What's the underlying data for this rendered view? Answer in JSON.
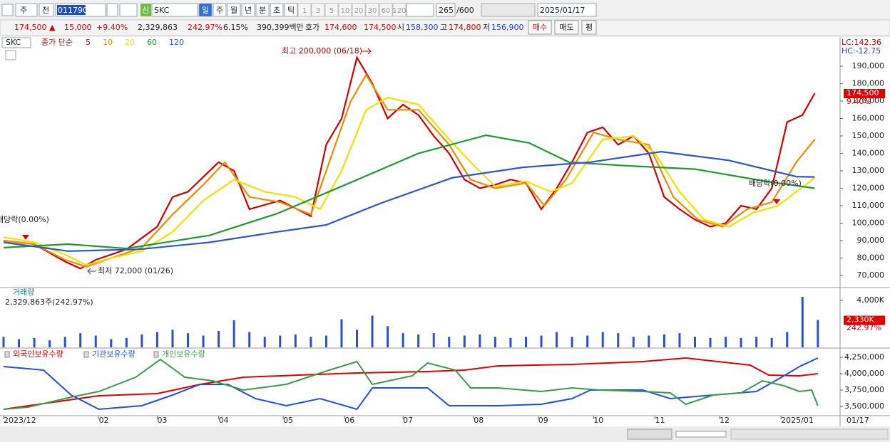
{
  "toolbar": {
    "market": "주",
    "prev": "전",
    "code": "011790",
    "new": "신",
    "name": "SKC",
    "periods": [
      "일",
      "주",
      "월",
      "년",
      "분",
      "초",
      "틱"
    ],
    "intervals": [
      "1",
      "3",
      "5",
      "10",
      "20",
      "30",
      "60",
      "120"
    ],
    "count": "265",
    "max": "/600",
    "date": "2025/01/17"
  },
  "quote_bar": {
    "items": [
      "174,500 ▲",
      "15,000",
      "+9.40%",
      "2,329,863",
      "242.97%",
      "6.15%",
      "390,399백만",
      "호가",
      "174,600",
      "174,500",
      "시",
      "158,300",
      "고",
      "174,800",
      "저",
      "156,900"
    ],
    "buttons": [
      "매수",
      "매도",
      "평"
    ]
  },
  "chart_data": [
    {
      "type": "line",
      "symbol": "SKC",
      "legend_prefix": "종가 단순",
      "xlim": [
        0,
        272
      ],
      "ylim": [
        63500,
        205500
      ],
      "yticks": [
        {
          "value": 190000,
          "label": "190,000"
        },
        {
          "value": 180000,
          "label": "180,000"
        },
        {
          "value": 170000,
          "label": "170,000"
        },
        {
          "value": 160000,
          "label": "160,000"
        },
        {
          "value": 150000,
          "label": "150,000"
        },
        {
          "value": 140000,
          "label": "140,000"
        },
        {
          "value": 130000,
          "label": "130,000"
        },
        {
          "value": 120000,
          "label": "120,000"
        },
        {
          "value": 110000,
          "label": "110,000"
        },
        {
          "value": 100000,
          "label": "100,000"
        },
        {
          "value": 90000,
          "label": "90,000"
        },
        {
          "value": 80000,
          "label": "80,000"
        },
        {
          "value": 70000,
          "label": "70,000"
        }
      ],
      "lc_label": "LC:142.36",
      "hc_label": "HC:-12.75",
      "last_value": {
        "value": 174500,
        "label": "174,500"
      },
      "change_label": "9.40%",
      "annotations": [
        "최고 200,000 (06/18)",
        "최저 72,000 (01/26)",
        "배당락(0.00%)",
        "배당락(0.00%)"
      ],
      "series": [
        {
          "name": "5",
          "color": "#d40000",
          "x": [
            0,
            10,
            20,
            25,
            30,
            40,
            50,
            55,
            60,
            70,
            75,
            80,
            90,
            100,
            105,
            110,
            115,
            120,
            125,
            130,
            135,
            140,
            145,
            150,
            155,
            160,
            165,
            170,
            175,
            180,
            185,
            190,
            195,
            200,
            205,
            210,
            215,
            220,
            225,
            230,
            235,
            240,
            245,
            250,
            255,
            260,
            264
          ],
          "values": [
            90000,
            88000,
            78000,
            74000,
            79000,
            85000,
            98000,
            115000,
            118000,
            135000,
            130000,
            108000,
            113000,
            104000,
            145000,
            160000,
            195000,
            180000,
            160000,
            168000,
            162000,
            150000,
            140000,
            125000,
            120000,
            122000,
            125000,
            123000,
            108000,
            120000,
            135000,
            152000,
            155000,
            145000,
            150000,
            140000,
            115000,
            108000,
            102000,
            98000,
            100000,
            110000,
            108000,
            120000,
            158000,
            162000,
            174500
          ]
        },
        {
          "name": "10",
          "color": "#f08c00",
          "x": [
            0,
            10,
            20,
            27,
            35,
            45,
            55,
            65,
            72,
            80,
            90,
            100,
            107,
            113,
            118,
            125,
            135,
            145,
            152,
            160,
            170,
            176,
            183,
            192,
            200,
            210,
            218,
            226,
            234,
            242,
            250,
            258,
            264
          ],
          "values": [
            90000,
            88000,
            79000,
            75000,
            80000,
            86000,
            105000,
            122000,
            135000,
            115000,
            112000,
            105000,
            140000,
            170000,
            185000,
            165000,
            165000,
            145000,
            125000,
            120000,
            123000,
            110000,
            125000,
            152000,
            148000,
            145000,
            115000,
            102000,
            98000,
            108000,
            112000,
            135000,
            148000
          ]
        },
        {
          "name": "20",
          "color": "#f2e200",
          "x": [
            0,
            10,
            20,
            27,
            35,
            45,
            55,
            65,
            75,
            85,
            95,
            103,
            110,
            118,
            125,
            135,
            145,
            152,
            160,
            170,
            178,
            185,
            195,
            205,
            212,
            220,
            228,
            236,
            244,
            252,
            258,
            264
          ],
          "values": [
            92000,
            89000,
            82000,
            76000,
            80000,
            84000,
            95000,
            113000,
            125000,
            118000,
            115000,
            108000,
            130000,
            165000,
            172000,
            168000,
            148000,
            135000,
            121000,
            124000,
            118000,
            123000,
            148000,
            150000,
            140000,
            118000,
            102000,
            98000,
            106000,
            110000,
            118000,
            126000
          ]
        },
        {
          "name": "60",
          "color": "#1f9a2f",
          "x": [
            0,
            21,
            40,
            67,
            89,
            112,
            135,
            157,
            171,
            184,
            202,
            225,
            248,
            264
          ],
          "values": [
            86000,
            88000,
            85500,
            93000,
            105500,
            122600,
            140000,
            150400,
            146000,
            135000,
            133000,
            131000,
            124000,
            120000
          ]
        },
        {
          "name": "120",
          "color": "#2f55d4",
          "x": [
            0,
            21,
            44,
            67,
            89,
            105,
            123,
            146,
            169,
            191,
            214,
            236,
            258,
            264
          ],
          "values": [
            89000,
            84000,
            85000,
            89000,
            95000,
            99000,
            111600,
            126000,
            132000,
            135000,
            141000,
            136000,
            126700,
            126500
          ]
        }
      ]
    },
    {
      "type": "bar",
      "title": "거래량",
      "subtitle": "2,329,863주(242.97%)",
      "color": "#2b4fd0",
      "xlim": [
        0,
        272
      ],
      "ylim": [
        0,
        5030000
      ],
      "yticks": [
        {
          "value": 4000000,
          "label": "4,000K"
        }
      ],
      "last_value": {
        "value": 2330000,
        "label": "2,330K"
      },
      "ratio_label": "242.97%",
      "x": [
        0,
        5,
        10,
        15,
        20,
        25,
        30,
        35,
        40,
        45,
        50,
        55,
        60,
        65,
        70,
        75,
        80,
        85,
        90,
        95,
        100,
        105,
        110,
        115,
        120,
        125,
        130,
        135,
        140,
        145,
        150,
        155,
        160,
        165,
        170,
        175,
        180,
        185,
        190,
        195,
        200,
        205,
        210,
        215,
        220,
        225,
        230,
        235,
        240,
        245,
        250,
        255,
        260,
        265
      ],
      "values": [
        900000,
        700000,
        800000,
        600000,
        900000,
        1200000,
        1000000,
        700000,
        800000,
        1100000,
        1300000,
        1500000,
        1200000,
        1000000,
        1400000,
        2300000,
        1300000,
        900000,
        1000000,
        1100000,
        900000,
        1000000,
        2400000,
        1500000,
        2700000,
        1800000,
        1200000,
        1100000,
        1200000,
        900000,
        1000000,
        1100000,
        900000,
        800000,
        900000,
        1000000,
        1300000,
        900000,
        1000000,
        1300000,
        1200000,
        900000,
        1000000,
        1100000,
        1200000,
        900000,
        800000,
        900000,
        800000,
        900000,
        800000,
        1300000,
        4300000,
        2330000
      ]
    },
    {
      "type": "line",
      "xlim": [
        0,
        272
      ],
      "ylim": [
        3369600,
        4358700
      ],
      "yticks": [
        {
          "value": 4250000,
          "label": "4,250,000"
        },
        {
          "value": 4000000,
          "label": "4,000,000"
        },
        {
          "value": 3750000,
          "label": "3,750,000"
        },
        {
          "value": 3500000,
          "label": "3,500,000"
        }
      ],
      "xticks": [
        {
          "value": 0,
          "label": "2023/12"
        },
        {
          "value": 31,
          "label": "02"
        },
        {
          "value": 50,
          "label": "03"
        },
        {
          "value": 70,
          "label": "04"
        },
        {
          "value": 91,
          "label": "05"
        },
        {
          "value": 111,
          "label": "06"
        },
        {
          "value": 130,
          "label": "07"
        },
        {
          "value": 153,
          "label": "08"
        },
        {
          "value": 174,
          "label": "09"
        },
        {
          "value": 192,
          "label": "10"
        },
        {
          "value": 212,
          "label": "11"
        },
        {
          "value": 233,
          "label": "12"
        },
        {
          "value": 253,
          "label": "2025/01"
        }
      ],
      "x_end_label": "01/17",
      "series": [
        {
          "name": "외국인보유수량",
          "color": "#e00000",
          "x": [
            0,
            31,
            50,
            64,
            78,
            96,
            115,
            138,
            150,
            161,
            185,
            208,
            222,
            243,
            249,
            259,
            265
          ],
          "values": [
            3457000,
            3663000,
            3696000,
            3837000,
            3946000,
            3978000,
            4011000,
            4033000,
            4054000,
            4120000,
            4141000,
            4185000,
            4239000,
            4130000,
            3978000,
            3967000,
            4000000
          ]
        },
        {
          "name": "기관보유수량",
          "color": "#2050e0",
          "x": [
            0,
            13,
            22,
            31,
            45,
            55,
            64,
            73,
            82,
            92,
            103,
            115,
            120,
            138,
            145,
            161,
            175,
            185,
            191,
            208,
            217,
            231,
            245,
            254,
            259,
            265
          ],
          "values": [
            4109000,
            4054000,
            3674000,
            3457000,
            3511000,
            3674000,
            3837000,
            3837000,
            3620000,
            3511000,
            3620000,
            3457000,
            3783000,
            3783000,
            3511000,
            3511000,
            3533000,
            3620000,
            3750000,
            3750000,
            3620000,
            3674000,
            3728000,
            3967000,
            4109000,
            4239000
          ]
        },
        {
          "name": "개인보유수량",
          "color": "#3a9a4a",
          "x": [
            0,
            8,
            22,
            31,
            43,
            51,
            59,
            68,
            78,
            92,
            106,
            115,
            120,
            133,
            138,
            147,
            152,
            161,
            175,
            185,
            194,
            208,
            217,
            222,
            231,
            240,
            247,
            254,
            259,
            263,
            265
          ],
          "values": [
            3457000,
            3489000,
            3641000,
            3728000,
            3946000,
            4217000,
            3946000,
            3891000,
            3750000,
            3837000,
            4054000,
            4185000,
            3837000,
            3967000,
            4163000,
            4054000,
            3783000,
            3783000,
            3728000,
            3783000,
            3750000,
            3728000,
            3707000,
            3533000,
            3674000,
            3707000,
            3891000,
            3815000,
            3728000,
            3750000,
            3511000
          ]
        }
      ]
    }
  ]
}
